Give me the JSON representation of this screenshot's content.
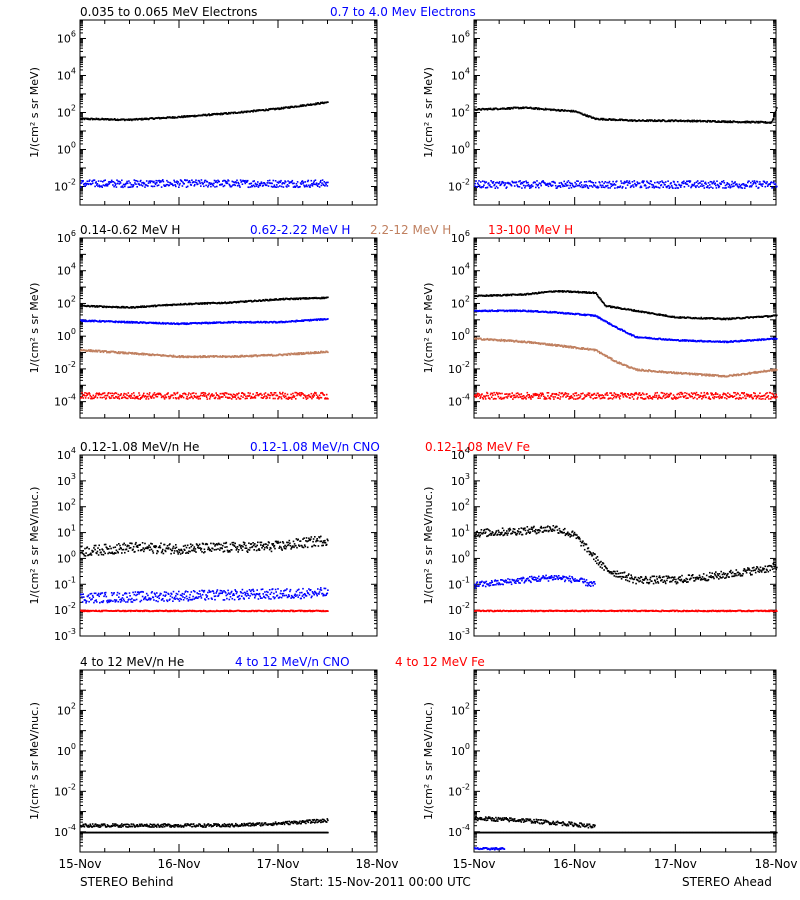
{
  "footer": {
    "left": "STEREO Behind",
    "center": "Start: 15-Nov-2011 00:00 UTC",
    "right": "STEREO Ahead"
  },
  "x_ticks": [
    "15-Nov",
    "16-Nov",
    "17-Nov",
    "18-Nov"
  ],
  "colors": {
    "black": "#000000",
    "blue": "#0000ff",
    "tan": "#c08060",
    "red": "#ff0000",
    "axis": "#000000"
  },
  "chart_data": [
    {
      "type": "scatter",
      "row": 0,
      "ylabel": "1/(cm² s sr MeV)",
      "yscale": "log",
      "ylim_exp": [
        -3,
        7
      ],
      "yticks": [
        {
          "label": "10",
          "exp": "6",
          "e": 6
        },
        {
          "label": "10",
          "exp": "4",
          "e": 4
        },
        {
          "label": "10",
          "exp": "2",
          "e": 2
        },
        {
          "label": "10",
          "exp": "0",
          "e": 0
        },
        {
          "label": "10",
          "exp": "-2",
          "e": -2
        }
      ],
      "xlim_days": [
        0,
        3
      ],
      "legend": [
        {
          "text": "0.035 to 0.065 MeV Electrons",
          "color": "black"
        },
        {
          "text": "0.7 to 4.0 Mev Electrons",
          "color": "blue"
        }
      ],
      "behind": [
        {
          "color": "black",
          "x": [
            0,
            0.5,
            1.0,
            1.5,
            2.0,
            2.5
          ],
          "log10y": [
            1.7,
            1.65,
            1.8,
            2.0,
            2.25,
            2.6
          ],
          "noise": 0.04
        },
        {
          "color": "blue",
          "x": [
            0,
            2.5
          ],
          "log10y": [
            -1.8,
            -1.8
          ],
          "noise": 0.2
        }
      ],
      "ahead": [
        {
          "color": "black",
          "x": [
            0,
            0.5,
            1.0,
            1.2,
            1.6,
            2.0,
            2.5,
            2.95,
            3.0
          ],
          "log10y": [
            2.2,
            2.3,
            2.1,
            1.7,
            1.6,
            1.6,
            1.55,
            1.5,
            2.3
          ],
          "noise": 0.04
        },
        {
          "color": "blue",
          "x": [
            0,
            3.0
          ],
          "log10y": [
            -1.85,
            -1.85
          ],
          "noise": 0.2
        }
      ]
    },
    {
      "type": "scatter",
      "row": 1,
      "ylabel": "1/(cm² s sr MeV)",
      "yscale": "log",
      "ylim_exp": [
        -5,
        6
      ],
      "yticks": [
        {
          "label": "10",
          "exp": "6",
          "e": 6
        },
        {
          "label": "10",
          "exp": "4",
          "e": 4
        },
        {
          "label": "10",
          "exp": "2",
          "e": 2
        },
        {
          "label": "10",
          "exp": "0",
          "e": 0
        },
        {
          "label": "10",
          "exp": "-2",
          "e": -2
        },
        {
          "label": "10",
          "exp": "-4",
          "e": -4
        }
      ],
      "xlim_days": [
        0,
        3
      ],
      "legend": [
        {
          "text": "0.14-0.62 MeV H",
          "color": "black"
        },
        {
          "text": "0.62-2.22 MeV H",
          "color": "blue"
        },
        {
          "text": "2.2-12 MeV H",
          "color": "tan"
        },
        {
          "text": "13-100 MeV H",
          "color": "red"
        }
      ],
      "behind": [
        {
          "color": "black",
          "x": [
            0,
            0.5,
            1.0,
            1.5,
            2.0,
            2.5
          ],
          "log10y": [
            1.9,
            1.8,
            2.0,
            2.1,
            2.3,
            2.4
          ],
          "noise": 0.04
        },
        {
          "color": "blue",
          "x": [
            0,
            0.5,
            1.0,
            1.5,
            2.0,
            2.5
          ],
          "log10y": [
            1.0,
            0.9,
            0.8,
            0.9,
            0.9,
            1.1
          ],
          "noise": 0.04
        },
        {
          "color": "tan",
          "x": [
            0,
            0.5,
            1.0,
            1.5,
            2.0,
            2.5
          ],
          "log10y": [
            -0.8,
            -1.0,
            -1.2,
            -1.2,
            -1.1,
            -0.9
          ],
          "noise": 0.05
        },
        {
          "color": "red",
          "x": [
            0,
            2.5
          ],
          "log10y": [
            -3.6,
            -3.6
          ],
          "noise": 0.2
        }
      ],
      "ahead": [
        {
          "color": "black",
          "x": [
            0,
            0.5,
            0.8,
            1.2,
            1.3,
            1.6,
            2.0,
            2.5,
            3.0
          ],
          "log10y": [
            2.5,
            2.6,
            2.8,
            2.7,
            1.9,
            1.6,
            1.2,
            1.1,
            1.3
          ],
          "noise": 0.04
        },
        {
          "color": "blue",
          "x": [
            0,
            0.5,
            0.8,
            1.2,
            1.4,
            1.6,
            2.0,
            2.5,
            3.0
          ],
          "log10y": [
            1.6,
            1.6,
            1.5,
            1.3,
            0.6,
            0.0,
            -0.2,
            -0.3,
            -0.1
          ],
          "noise": 0.04
        },
        {
          "color": "tan",
          "x": [
            0,
            0.5,
            0.8,
            1.2,
            1.4,
            1.6,
            2.0,
            2.5,
            3.0
          ],
          "log10y": [
            -0.1,
            -0.3,
            -0.5,
            -0.8,
            -1.5,
            -2.0,
            -2.2,
            -2.4,
            -2.0
          ],
          "noise": 0.05
        },
        {
          "color": "red",
          "x": [
            0,
            3.0
          ],
          "log10y": [
            -3.6,
            -3.6
          ],
          "noise": 0.2
        }
      ]
    },
    {
      "type": "scatter",
      "row": 2,
      "ylabel": "1/(cm² s sr MeV/nuc.)",
      "yscale": "log",
      "ylim_exp": [
        -3,
        4
      ],
      "yticks": [
        {
          "label": "10",
          "exp": "4",
          "e": 4
        },
        {
          "label": "10",
          "exp": "3",
          "e": 3
        },
        {
          "label": "10",
          "exp": "2",
          "e": 2
        },
        {
          "label": "10",
          "exp": "1",
          "e": 1
        },
        {
          "label": "10",
          "exp": "0",
          "e": 0
        },
        {
          "label": "10",
          "exp": "-1",
          "e": -1
        },
        {
          "label": "10",
          "exp": "-2",
          "e": -2
        },
        {
          "label": "10",
          "exp": "-3",
          "e": -3
        }
      ],
      "xlim_days": [
        0,
        3
      ],
      "legend": [
        {
          "text": "0.12-1.08 MeV/n He",
          "color": "black"
        },
        {
          "text": "0.12-1.08 MeV/n CNO",
          "color": "blue"
        },
        {
          "text": "0.12-1.08 MeV Fe",
          "color": "red"
        }
      ],
      "behind": [
        {
          "color": "black",
          "x": [
            0,
            0.5,
            1.0,
            1.5,
            2.0,
            2.5
          ],
          "log10y": [
            0.3,
            0.45,
            0.4,
            0.45,
            0.5,
            0.75
          ],
          "noise": 0.2
        },
        {
          "color": "blue",
          "x": [
            0,
            2.5
          ],
          "log10y": [
            -1.5,
            -1.3
          ],
          "noise": 0.2
        },
        {
          "color": "red",
          "x": [
            0,
            2.5
          ],
          "log10y": [
            -2.0,
            -2.0
          ],
          "noise": 0.02
        }
      ],
      "ahead": [
        {
          "color": "black",
          "x": [
            0,
            0.5,
            0.8,
            1.0,
            1.3,
            1.6,
            2.0,
            2.5,
            3.0
          ],
          "log10y": [
            1.0,
            1.1,
            1.2,
            0.9,
            -0.4,
            -0.8,
            -0.8,
            -0.6,
            -0.3
          ],
          "noise": 0.15
        },
        {
          "color": "blue",
          "x": [
            0,
            0.5,
            0.8,
            1.0,
            1.2
          ],
          "log10y": [
            -1.0,
            -0.8,
            -0.7,
            -0.8,
            -1.0
          ],
          "noise": 0.12
        },
        {
          "color": "red",
          "x": [
            0,
            3.0
          ],
          "log10y": [
            -2.0,
            -2.0
          ],
          "noise": 0.02
        }
      ]
    },
    {
      "type": "scatter",
      "row": 3,
      "ylabel": "1/(cm² s sr MeV/nuc.)",
      "yscale": "log",
      "ylim_exp": [
        -5,
        4
      ],
      "yticks": [
        {
          "label": "10",
          "exp": "2",
          "e": 2
        },
        {
          "label": "10",
          "exp": "0",
          "e": 0
        },
        {
          "label": "10",
          "exp": "-2",
          "e": -2
        },
        {
          "label": "10",
          "exp": "-4",
          "e": -4
        }
      ],
      "xlim_days": [
        0,
        3
      ],
      "legend": [
        {
          "text": "4 to 12 MeV/n He",
          "color": "black"
        },
        {
          "text": "4 to 12 MeV/n CNO",
          "color": "blue"
        },
        {
          "text": "4 to 12 MeV Fe",
          "color": "red"
        }
      ],
      "behind": [
        {
          "color": "black",
          "x": [
            0,
            2.5
          ],
          "log10y": [
            -4.0,
            -4.0
          ],
          "noise": 0.0
        },
        {
          "color": "black",
          "x": [
            0,
            1.5,
            2.0,
            2.5
          ],
          "log10y": [
            -3.65,
            -3.65,
            -3.55,
            -3.4
          ],
          "noise": 0.08
        }
      ],
      "ahead": [
        {
          "color": "black",
          "x": [
            0,
            3.0
          ],
          "log10y": [
            -4.0,
            -4.0
          ],
          "noise": 0.0
        },
        {
          "color": "black",
          "x": [
            0,
            0.5,
            1.0,
            1.2
          ],
          "log10y": [
            -3.3,
            -3.4,
            -3.6,
            -3.7
          ],
          "noise": 0.1
        },
        {
          "color": "blue",
          "x": [
            0,
            0.3
          ],
          "log10y": [
            -4.8,
            -4.8
          ],
          "noise": 0.05
        }
      ]
    }
  ]
}
